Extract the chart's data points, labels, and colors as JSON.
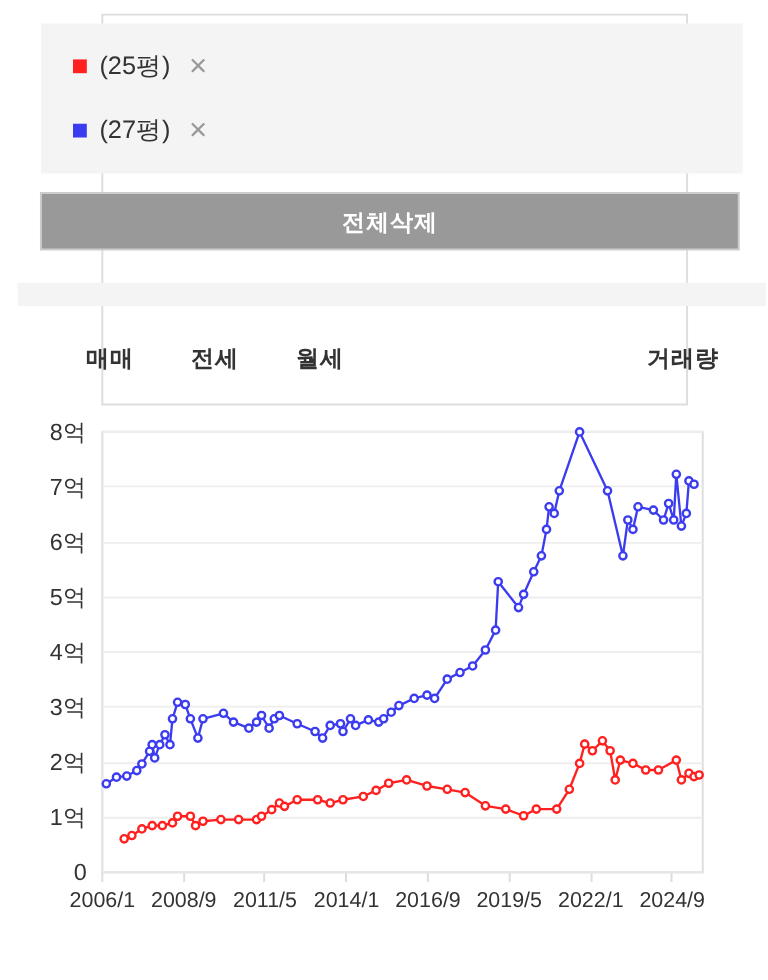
{
  "chart_data": {
    "type": "line",
    "legend": "top left",
    "annotations": [
      "×",
      "×",
      "전체삭제",
      "매매",
      "전세",
      "월세",
      "거래량"
    ],
    "series": [
      {
        "name": "(25평)",
        "color": "#ff2020",
        "x": [
          "2006-10",
          "2007-01",
          "2007-05",
          "2007-09",
          "2008-01",
          "2008-05",
          "2008-07",
          "2008-12",
          "2009-02",
          "2009-05",
          "2009-12",
          "2010-07",
          "2011-02",
          "2011-04",
          "2011-08",
          "2011-11",
          "2012-01",
          "2012-06",
          "2013-02",
          "2013-07",
          "2013-12",
          "2014-08",
          "2015-01",
          "2015-06",
          "2016-01",
          "2016-09",
          "2017-05",
          "2017-12",
          "2018-08",
          "2019-04",
          "2019-11",
          "2020-04",
          "2020-12",
          "2021-05",
          "2021-09",
          "2021-11",
          "2022-02",
          "2022-06",
          "2022-09",
          "2022-11",
          "2023-01",
          "2023-06",
          "2023-11",
          "2024-04",
          "2024-11",
          "2025-01",
          "2025-04",
          "2025-06",
          "2025-08"
        ],
        "values": [
          0.59,
          0.65,
          0.77,
          0.83,
          0.83,
          0.88,
          1.0,
          1.0,
          0.83,
          0.91,
          0.94,
          0.94,
          0.94,
          1.0,
          1.12,
          1.24,
          1.18,
          1.3,
          1.3,
          1.24,
          1.3,
          1.36,
          1.47,
          1.6,
          1.66,
          1.55,
          1.49,
          1.43,
          1.19,
          1.13,
          1.01,
          1.13,
          1.13,
          1.49,
          1.96,
          2.31,
          2.19,
          2.37,
          2.19,
          1.66,
          2.02,
          1.96,
          1.84,
          1.84,
          2.02,
          1.66,
          1.78,
          1.72,
          1.75
        ]
      },
      {
        "name": "(27평)",
        "color": "#3b3bf0",
        "x": [
          "2006-03",
          "2006-07",
          "2006-11",
          "2007-03",
          "2007-05",
          "2007-08",
          "2007-09",
          "2007-10",
          "2007-12",
          "2008-02",
          "2008-04",
          "2008-05",
          "2008-07",
          "2008-10",
          "2008-12",
          "2009-03",
          "2009-05",
          "2010-01",
          "2010-05",
          "2010-11",
          "2011-02",
          "2011-04",
          "2011-07",
          "2011-09",
          "2011-11",
          "2012-06",
          "2013-01",
          "2013-04",
          "2013-07",
          "2013-11",
          "2013-12",
          "2014-03",
          "2014-05",
          "2014-10",
          "2015-02",
          "2015-04",
          "2015-07",
          "2015-10",
          "2016-04",
          "2016-09",
          "2016-12",
          "2017-05",
          "2017-10",
          "2018-03",
          "2018-08",
          "2018-12",
          "2019-01",
          "2019-09",
          "2019-11",
          "2020-03",
          "2020-06",
          "2020-08",
          "2020-09",
          "2020-11",
          "2021-01",
          "2021-09",
          "2022-08",
          "2023-02",
          "2023-04",
          "2023-06",
          "2023-08",
          "2024-02",
          "2024-06",
          "2024-08",
          "2024-10",
          "2024-11",
          "2025-01",
          "2025-03",
          "2025-04",
          "2025-06"
        ],
        "values": [
          1.59,
          1.71,
          1.73,
          1.83,
          1.95,
          2.18,
          2.3,
          2.06,
          2.3,
          2.48,
          2.3,
          2.77,
          3.07,
          3.03,
          2.77,
          2.42,
          2.77,
          2.87,
          2.71,
          2.6,
          2.71,
          2.83,
          2.6,
          2.77,
          2.83,
          2.68,
          2.54,
          2.42,
          2.65,
          2.68,
          2.54,
          2.77,
          2.65,
          2.75,
          2.71,
          2.77,
          2.89,
          3.01,
          3.14,
          3.2,
          3.14,
          3.49,
          3.61,
          3.73,
          4.02,
          4.38,
          5.26,
          4.79,
          5.03,
          5.44,
          5.73,
          6.21,
          6.62,
          6.5,
          6.91,
          7.98,
          6.91,
          5.73,
          6.38,
          6.21,
          6.62,
          6.56,
          6.38,
          6.68,
          6.38,
          7.21,
          6.27,
          6.5,
          7.09,
          7.03
        ]
      }
    ],
    "xlim": [
      "2006-01",
      "2025-09"
    ],
    "xticks": [
      {
        "value": "2006-01",
        "label": "2006/1"
      },
      {
        "value": "2008-09",
        "label": "2008/9"
      },
      {
        "value": "2011-05",
        "label": "2011/5"
      },
      {
        "value": "2014-01",
        "label": "2014/1"
      },
      {
        "value": "2016-09",
        "label": "2016/9"
      },
      {
        "value": "2019-05",
        "label": "2019/5"
      },
      {
        "value": "2022-01",
        "label": "2022/1"
      },
      {
        "value": "2024-09",
        "label": "2024/9"
      }
    ],
    "ylim": [
      0,
      8
    ],
    "yticks": [
      0,
      {
        "value": 1,
        "label": "1억"
      },
      {
        "value": 2,
        "label": "2억"
      },
      {
        "value": 3,
        "label": "3억"
      },
      {
        "value": 4,
        "label": "4억"
      },
      {
        "value": 5,
        "label": "5억"
      },
      {
        "value": 6,
        "label": "6억"
      },
      {
        "value": 7,
        "label": "7억"
      },
      {
        "value": 8,
        "label": "8억"
      }
    ],
    "grid": "y",
    "marker": "circle",
    "line_style": "solid"
  }
}
